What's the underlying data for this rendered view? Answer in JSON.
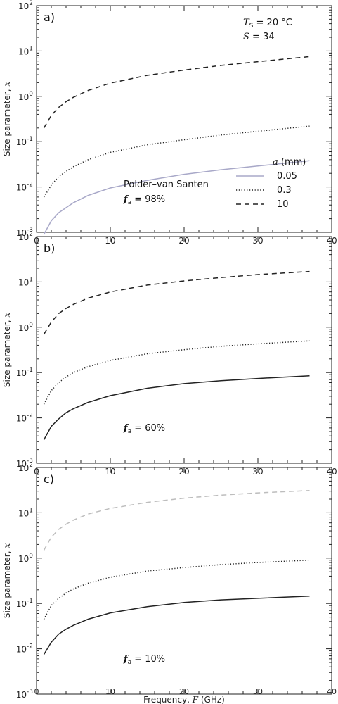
{
  "chart_data": [
    {
      "type": "line",
      "panel_label": "a)",
      "ylabel": "Size parameter, x",
      "xlabel": "",
      "x_ticks": [
        "0",
        "10",
        "20",
        "30",
        "40"
      ],
      "xlim": [
        0,
        40
      ],
      "ylim": [
        0.001,
        100
      ],
      "yscale": "log",
      "y_ticks": [
        {
          "value": 0.001,
          "base": "10",
          "exp": "-3"
        },
        {
          "value": 0.01,
          "base": "10",
          "exp": "-2"
        },
        {
          "value": 0.1,
          "base": "10",
          "exp": "-1"
        },
        {
          "value": 1,
          "base": "10",
          "exp": "0"
        },
        {
          "value": 10,
          "base": "10",
          "exp": "1"
        },
        {
          "value": 100,
          "base": "10",
          "exp": "2"
        }
      ],
      "annotations": {
        "ts": "T",
        "ts_sub": "S",
        "ts_value": "= 20 °C",
        "sal": "S",
        "sal_value": "= 34",
        "model": "Polder–van Santen",
        "fa_label": "f",
        "fa_sub": "a",
        "fa_value": "= 98%"
      },
      "legend": {
        "title_var": "a",
        "title_unit": "(mm)",
        "entries": [
          "0.05",
          "0.3",
          "10"
        ]
      },
      "series": [
        {
          "name": "0.05",
          "style": "solid",
          "color": "#a8a8c8",
          "x": [
            1,
            2,
            3,
            4,
            5,
            7,
            10,
            15,
            20,
            25,
            30,
            37
          ],
          "y": [
            0.0009,
            0.0018,
            0.0027,
            0.0035,
            0.0045,
            0.0065,
            0.0095,
            0.014,
            0.019,
            0.024,
            0.029,
            0.038
          ]
        },
        {
          "name": "0.3",
          "style": "dotted",
          "color": "#222222",
          "x": [
            1,
            2,
            3,
            4,
            5,
            7,
            10,
            15,
            20,
            25,
            30,
            37
          ],
          "y": [
            0.006,
            0.011,
            0.017,
            0.022,
            0.028,
            0.04,
            0.058,
            0.085,
            0.11,
            0.14,
            0.17,
            0.22
          ]
        },
        {
          "name": "10",
          "style": "dashed",
          "color": "#222222",
          "x": [
            1,
            2,
            3,
            4,
            5,
            7,
            10,
            15,
            20,
            25,
            30,
            37
          ],
          "y": [
            0.2,
            0.38,
            0.57,
            0.76,
            0.95,
            1.35,
            1.95,
            2.9,
            3.8,
            4.8,
            5.8,
            7.5
          ]
        }
      ]
    },
    {
      "type": "line",
      "panel_label": "b)",
      "ylabel": "Size parameter, x",
      "xlabel": "",
      "x_ticks": [
        "0",
        "10",
        "20",
        "30",
        "40"
      ],
      "xlim": [
        0,
        40
      ],
      "ylim": [
        0.001,
        100
      ],
      "yscale": "log",
      "y_ticks": [
        {
          "value": 0.001,
          "base": "10",
          "exp": "-3"
        },
        {
          "value": 0.01,
          "base": "10",
          "exp": "-2"
        },
        {
          "value": 0.1,
          "base": "10",
          "exp": "-1"
        },
        {
          "value": 1,
          "base": "10",
          "exp": "0"
        },
        {
          "value": 10,
          "base": "10",
          "exp": "1"
        },
        {
          "value": 100,
          "base": "10",
          "exp": "2"
        }
      ],
      "annotations": {
        "fa_label": "f",
        "fa_sub": "a",
        "fa_value": "= 60%"
      },
      "series": [
        {
          "name": "0.05",
          "style": "solid",
          "color": "#222222",
          "x": [
            1,
            2,
            3,
            4,
            5,
            7,
            10,
            15,
            20,
            25,
            30,
            37
          ],
          "y": [
            0.0033,
            0.0065,
            0.0095,
            0.013,
            0.016,
            0.022,
            0.031,
            0.045,
            0.057,
            0.066,
            0.074,
            0.085
          ]
        },
        {
          "name": "0.3",
          "style": "dotted",
          "color": "#222222",
          "x": [
            1,
            2,
            3,
            4,
            5,
            7,
            10,
            15,
            20,
            25,
            30,
            37
          ],
          "y": [
            0.02,
            0.04,
            0.06,
            0.08,
            0.1,
            0.135,
            0.185,
            0.26,
            0.32,
            0.38,
            0.43,
            0.5
          ]
        },
        {
          "name": "10",
          "style": "dashed",
          "color": "#222222",
          "x": [
            1,
            2,
            3,
            4,
            5,
            7,
            10,
            15,
            20,
            25,
            30,
            37
          ],
          "y": [
            0.7,
            1.3,
            2.0,
            2.6,
            3.2,
            4.4,
            6.0,
            8.5,
            10.5,
            12.5,
            14.5,
            17.0
          ]
        }
      ]
    },
    {
      "type": "line",
      "panel_label": "c)",
      "ylabel": "Size parameter, x",
      "xlabel": "Frequency, F (GHz)",
      "x_ticks": [
        "0",
        "10",
        "20",
        "30",
        "40"
      ],
      "xlim": [
        0,
        40
      ],
      "ylim": [
        0.001,
        100
      ],
      "yscale": "log",
      "y_ticks": [
        {
          "value": 0.001,
          "base": "10",
          "exp": "-3"
        },
        {
          "value": 0.01,
          "base": "10",
          "exp": "-2"
        },
        {
          "value": 0.1,
          "base": "10",
          "exp": "-1"
        },
        {
          "value": 1,
          "base": "10",
          "exp": "0"
        },
        {
          "value": 10,
          "base": "10",
          "exp": "1"
        },
        {
          "value": 100,
          "base": "10",
          "exp": "2"
        }
      ],
      "annotations": {
        "fa_label": "f",
        "fa_sub": "a",
        "fa_value": "= 10%"
      },
      "series": [
        {
          "name": "0.05",
          "style": "solid",
          "color": "#222222",
          "x": [
            1,
            2,
            3,
            4,
            5,
            7,
            10,
            15,
            20,
            25,
            30,
            37
          ],
          "y": [
            0.0075,
            0.014,
            0.021,
            0.027,
            0.033,
            0.045,
            0.062,
            0.085,
            0.105,
            0.12,
            0.13,
            0.145
          ]
        },
        {
          "name": "0.3",
          "style": "dotted",
          "color": "#222222",
          "x": [
            1,
            2,
            3,
            4,
            5,
            7,
            10,
            15,
            20,
            25,
            30,
            37
          ],
          "y": [
            0.045,
            0.09,
            0.13,
            0.17,
            0.21,
            0.28,
            0.38,
            0.52,
            0.62,
            0.72,
            0.8,
            0.9
          ]
        },
        {
          "name": "10",
          "style": "dashed",
          "color": "#bdbdbd",
          "x": [
            1,
            2,
            3,
            4,
            5,
            7,
            10,
            15,
            20,
            25,
            30,
            37
          ],
          "y": [
            1.5,
            2.9,
            4.3,
            5.6,
            6.9,
            9.4,
            12.5,
            17,
            21,
            24.5,
            27.5,
            31
          ]
        }
      ]
    }
  ]
}
